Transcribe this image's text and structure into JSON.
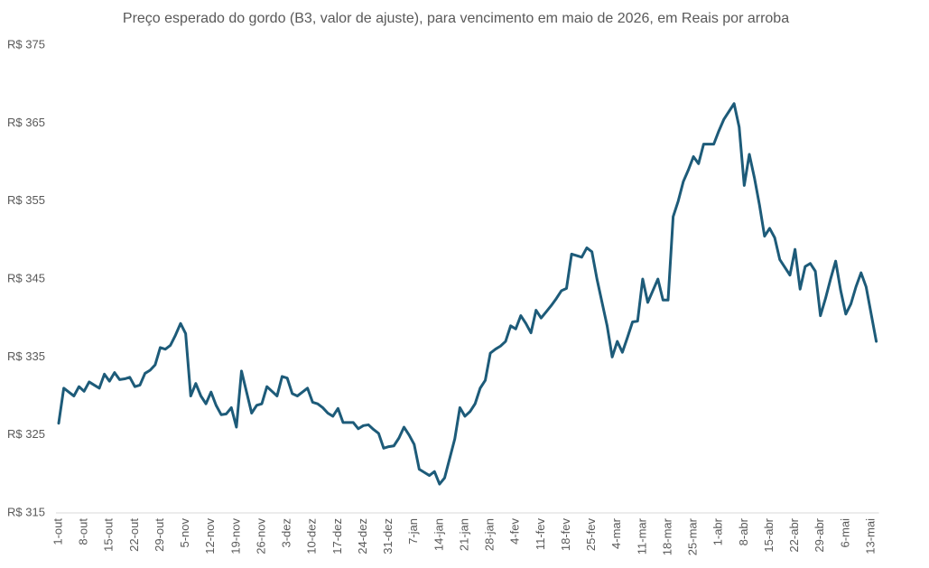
{
  "chart_data": {
    "type": "line",
    "title": "Preço esperado do gordo (B3, valor de ajuste), para vencimento em maio de 2026, em Reais por arroba",
    "categories": [
      "1-out",
      null,
      null,
      null,
      null,
      "8-out",
      null,
      null,
      null,
      null,
      "15-out",
      null,
      null,
      null,
      null,
      "22-out",
      null,
      null,
      null,
      null,
      "29-out",
      null,
      null,
      null,
      null,
      "5-nov",
      null,
      null,
      null,
      null,
      "12-nov",
      null,
      null,
      null,
      null,
      "19-nov",
      null,
      null,
      null,
      null,
      "26-nov",
      null,
      null,
      null,
      null,
      "3-dez",
      null,
      null,
      null,
      null,
      "10-dez",
      null,
      null,
      null,
      null,
      "17-dez",
      null,
      null,
      null,
      null,
      "24-dez",
      null,
      null,
      null,
      null,
      "31-dez",
      null,
      null,
      null,
      null,
      "7-jan",
      null,
      null,
      null,
      null,
      "14-jan",
      null,
      null,
      null,
      null,
      "21-jan",
      null,
      null,
      null,
      null,
      "28-jan",
      null,
      null,
      null,
      null,
      "4-fev",
      null,
      null,
      null,
      null,
      "11-fev",
      null,
      null,
      null,
      null,
      "18-fev",
      null,
      null,
      null,
      null,
      "25-fev",
      null,
      null,
      null,
      null,
      "4-mar",
      null,
      null,
      null,
      null,
      "11-mar",
      null,
      null,
      null,
      null,
      "18-mar",
      null,
      null,
      null,
      null,
      "25-mar",
      null,
      null,
      null,
      null,
      "1-abr",
      null,
      null,
      null,
      null,
      "8-abr",
      null,
      null,
      null,
      null,
      "15-abr",
      null,
      null,
      null,
      null,
      "22-abr",
      null,
      null,
      null,
      null,
      "29-abr",
      null,
      null,
      null,
      null,
      "6-mai",
      null,
      null,
      null,
      null,
      "13-mai",
      null
    ],
    "values": [
      326.5,
      331,
      330.5,
      330,
      331.2,
      330.6,
      331.8,
      331.4,
      331,
      332.8,
      331.9,
      333,
      332.1,
      332.2,
      332.4,
      331.2,
      331.4,
      332.9,
      333.3,
      334,
      336.2,
      336,
      336.5,
      337.8,
      339.3,
      338,
      330,
      331.6,
      330,
      329,
      330.5,
      328.8,
      327.6,
      327.7,
      328.5,
      326,
      333.2,
      330.5,
      327.8,
      328.8,
      329,
      331.2,
      330.6,
      330,
      332.5,
      332.3,
      330.3,
      330,
      330.5,
      331,
      329.2,
      329,
      328.5,
      327.8,
      327.4,
      328.4,
      326.6,
      326.6,
      326.6,
      325.8,
      326.2,
      326.3,
      325.7,
      325.2,
      323.3,
      323.5,
      323.6,
      324.6,
      326,
      325,
      323.8,
      320.6,
      320.2,
      319.8,
      320.3,
      318.7,
      319.5,
      322,
      324.5,
      328.5,
      327.4,
      328,
      329,
      331,
      332,
      335.5,
      336,
      336.4,
      337,
      339,
      338.6,
      340.3,
      339.3,
      338.1,
      341,
      340,
      340.8,
      341.6,
      342.5,
      343.5,
      343.8,
      348.2,
      348,
      347.8,
      349,
      348.5,
      345,
      342,
      339,
      335,
      337,
      335.6,
      337.5,
      339.5,
      339.6,
      345,
      342,
      343.5,
      345,
      342.3,
      342.3,
      353,
      355,
      357.5,
      359,
      360.7,
      359.8,
      362.3,
      362.3,
      362.3,
      364,
      365.5,
      366.5,
      367.5,
      364.5,
      357,
      361,
      358,
      354.5,
      350.5,
      351.5,
      350.3,
      347.5,
      346.5,
      345.5,
      348.8,
      343.7,
      346.6,
      347,
      346,
      340.3,
      342.5,
      345,
      347.3,
      343.5,
      340.5,
      341.8,
      344,
      345.8,
      344,
      340.5,
      337
    ],
    "color": "#1d5b79",
    "ylim": [
      315,
      375
    ],
    "yticks": [
      {
        "value": 315,
        "label": "R$ 315"
      },
      {
        "value": 325,
        "label": "R$ 325"
      },
      {
        "value": 335,
        "label": "R$ 335"
      },
      {
        "value": 345,
        "label": "R$ 345"
      },
      {
        "value": 355,
        "label": "R$ 355"
      },
      {
        "value": 365,
        "label": "R$ 365"
      },
      {
        "value": 375,
        "label": "R$ 375"
      }
    ],
    "grid": false
  }
}
